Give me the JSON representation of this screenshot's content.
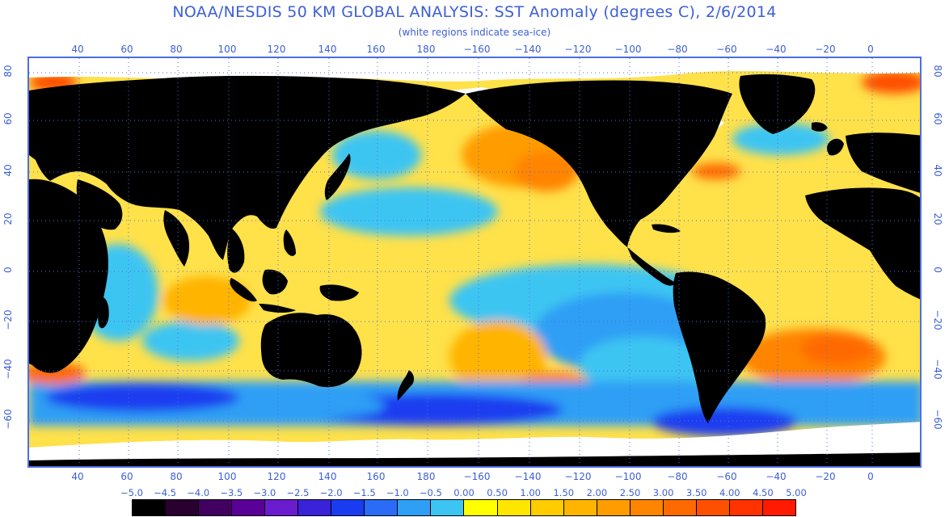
{
  "title": "NOAA/NESDIS 50 KM GLOBAL ANALYSIS: SST Anomaly (degrees C), 2/6/2014",
  "subtitle": "(white regions indicate sea-ice)",
  "x_ticks_top": [
    "40",
    "60",
    "80",
    "100",
    "120",
    "140",
    "160",
    "180",
    "−160",
    "−140",
    "−120",
    "−100",
    "−80",
    "−60",
    "−40",
    "−20",
    "0"
  ],
  "x_ticks_bottom": [
    "40",
    "60",
    "80",
    "100",
    "120",
    "140",
    "160",
    "180",
    "−160",
    "−140",
    "−120",
    "−100",
    "−80",
    "−60",
    "−40",
    "−20",
    "0"
  ],
  "y_ticks_left": [
    "80",
    "60",
    "40",
    "20",
    "0",
    "−20",
    "−40",
    "−60"
  ],
  "y_ticks_right": [
    "80",
    "60",
    "40",
    "20",
    "0",
    "−20",
    "−40",
    "−60"
  ],
  "legend": {
    "labels": [
      "−5.0",
      "−4.5",
      "−4.0",
      "−3.5",
      "−3.0",
      "−2.5",
      "−2.0",
      "−1.5",
      "−1.0",
      "−0.5",
      "0.00",
      "0.50",
      "1.00",
      "1.50",
      "2.00",
      "2.50",
      "3.00",
      "3.50",
      "4.00",
      "4.50",
      "5.00"
    ],
    "colors": [
      "#000000",
      "#2a0030",
      "#420060",
      "#5a0096",
      "#6b1ccf",
      "#3a22d8",
      "#1a3cf0",
      "#2a6cf5",
      "#2e9ff5",
      "#3cc5f2",
      "#ffff00",
      "#ffe600",
      "#ffcc00",
      "#ffb400",
      "#ff9c00",
      "#ff8400",
      "#ff6a00",
      "#ff5000",
      "#ff3300",
      "#ff1a00"
    ]
  },
  "colors": {
    "land": "#000000",
    "ocean_base": "#ffe14a",
    "sea_ice": "#ffffff",
    "grid": "#4b6fe6",
    "text": "#3d5fd6"
  }
}
